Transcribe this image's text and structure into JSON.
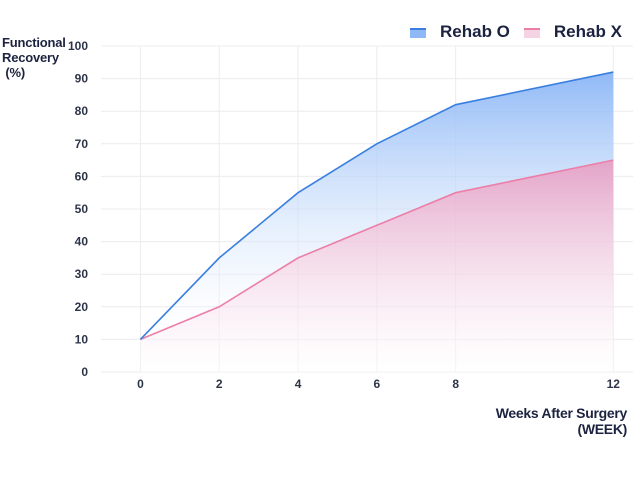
{
  "chart_data": {
    "type": "area",
    "ylabel_lines": [
      "Functional",
      "Recovery",
      " (%)"
    ],
    "xlabel_lines": [
      "Weeks After Surgery",
      "(WEEK)"
    ],
    "x": [
      0,
      2,
      4,
      6,
      8,
      12
    ],
    "xlim": [
      -1,
      12.5
    ],
    "ylim": [
      0,
      100
    ],
    "yticks": [
      0,
      10,
      20,
      30,
      40,
      50,
      60,
      70,
      80,
      90,
      100
    ],
    "grid": true,
    "legend_position": "top-right",
    "series": [
      {
        "name": "Rehab O",
        "values": [
          10,
          35,
          55,
          70,
          82,
          92
        ],
        "color": "#3a7fe0",
        "fill_top": "#8fb9f6",
        "fill_bottom": "#ffffff"
      },
      {
        "name": "Rehab X",
        "values": [
          10,
          20,
          35,
          45,
          55,
          65
        ],
        "color": "#ec7fa8",
        "fill_top": "#e3a3c8",
        "fill_bottom": "#ffffff"
      }
    ]
  }
}
